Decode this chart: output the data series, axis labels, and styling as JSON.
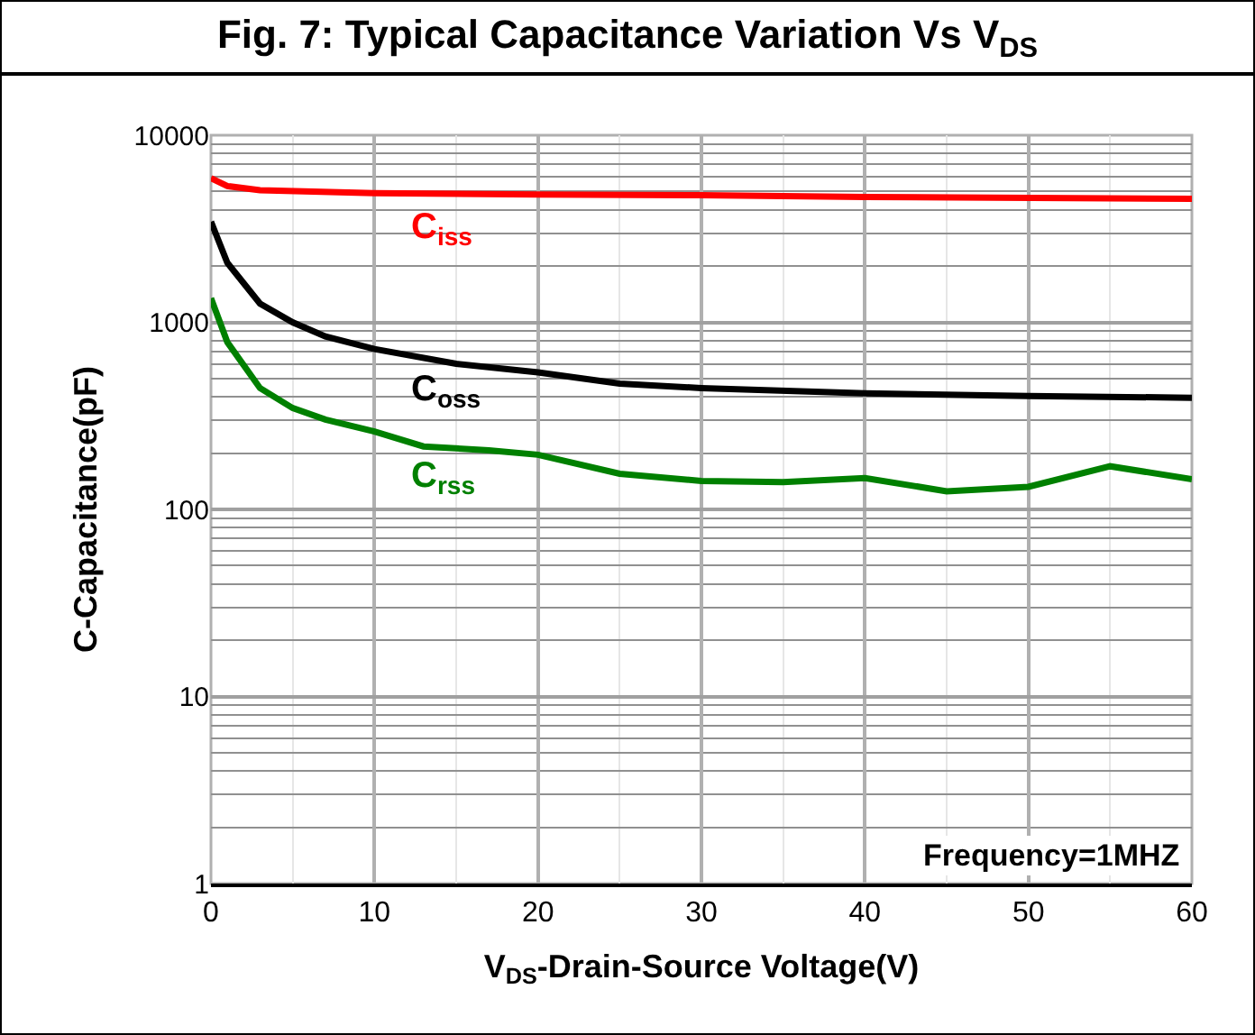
{
  "chart_data": {
    "type": "line",
    "title": "Fig. 7: Typical Capacitance Variation Vs V$_{DS}$",
    "xlabel": "V$_{DS}$-Drain-Source Voltage(V)",
    "ylabel": "C-Capacitance(pF)",
    "annotations": [
      "Frequency=1MHZ"
    ],
    "log": "y",
    "xlim": [
      0,
      60
    ],
    "xticks": [
      0,
      10,
      20,
      30,
      40,
      50,
      60
    ],
    "ylim": [
      1,
      10000
    ],
    "yticks": [
      1,
      10,
      100,
      1000,
      10000
    ],
    "grid": true,
    "legend": false,
    "marker": "none",
    "line_style": "solid",
    "series": [
      {
        "name": "C$_{iss}$",
        "color": "#ff0000",
        "x": [
          0,
          1,
          3,
          10,
          20,
          30,
          40,
          60
        ],
        "values": [
          5900,
          5350,
          5080,
          4900,
          4820,
          4780,
          4680,
          4570
        ]
      },
      {
        "name": "C$_{oss}$",
        "color": "#000000",
        "x": [
          0,
          1,
          3,
          5,
          7,
          10,
          15,
          20,
          25,
          30,
          40,
          50,
          60
        ],
        "values": [
          3450,
          2080,
          1260,
          1000,
          840,
          720,
          600,
          540,
          470,
          445,
          417,
          404,
          395
        ]
      },
      {
        "name": "C$_{rss}$",
        "color": "#008000",
        "x": [
          0,
          1,
          3,
          5,
          7,
          10,
          13,
          17,
          20,
          25,
          30,
          35,
          40,
          45,
          50,
          55,
          60
        ],
        "values": [
          1345,
          783,
          445,
          348,
          302,
          261,
          217,
          207,
          196,
          155,
          142,
          140,
          147,
          125,
          132,
          170,
          145
        ]
      }
    ]
  }
}
